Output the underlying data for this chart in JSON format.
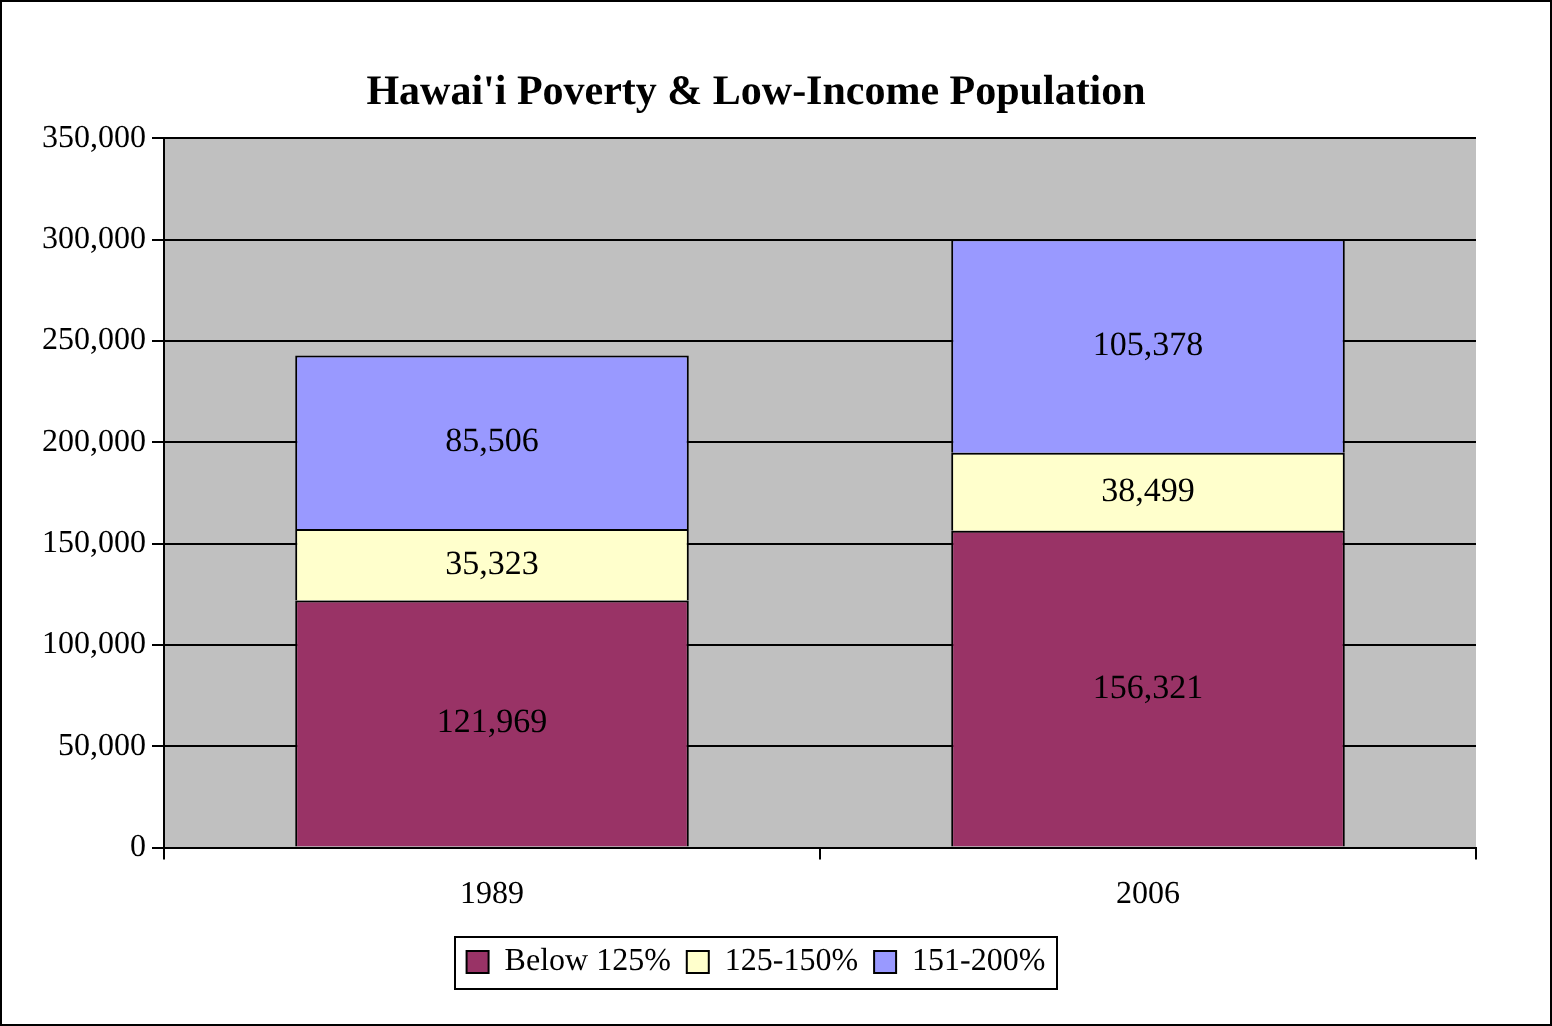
{
  "chart_data": {
    "type": "bar",
    "title": "Hawai'i Poverty & Low-Income Population",
    "categories": [
      "1989",
      "2006"
    ],
    "stacked": true,
    "series": [
      {
        "name": "Below 125%",
        "color": "#993366",
        "values": [
          121969,
          156321
        ],
        "value_labels": [
          "121,969",
          "156,321"
        ]
      },
      {
        "name": "125-150%",
        "color": "#ffffcc",
        "values": [
          35323,
          38499
        ],
        "value_labels": [
          "35,323",
          "38,499"
        ]
      },
      {
        "name": "151-200%",
        "color": "#9999ff",
        "values": [
          85506,
          105378
        ],
        "value_labels": [
          "85,506",
          "105,378"
        ]
      }
    ],
    "ylim": [
      0,
      350000
    ],
    "yticks": [
      0,
      {
        "value": 50000,
        "label": "50,000"
      },
      {
        "value": 100000,
        "label": "100,000"
      },
      {
        "value": 150000,
        "label": "150,000"
      },
      {
        "value": 200000,
        "label": "200,000"
      },
      {
        "value": 250000,
        "label": "250,000"
      },
      {
        "value": 300000,
        "label": "300,000"
      },
      {
        "value": 350000,
        "label": "350,000"
      }
    ],
    "grid": "y",
    "legend": "bottom"
  }
}
